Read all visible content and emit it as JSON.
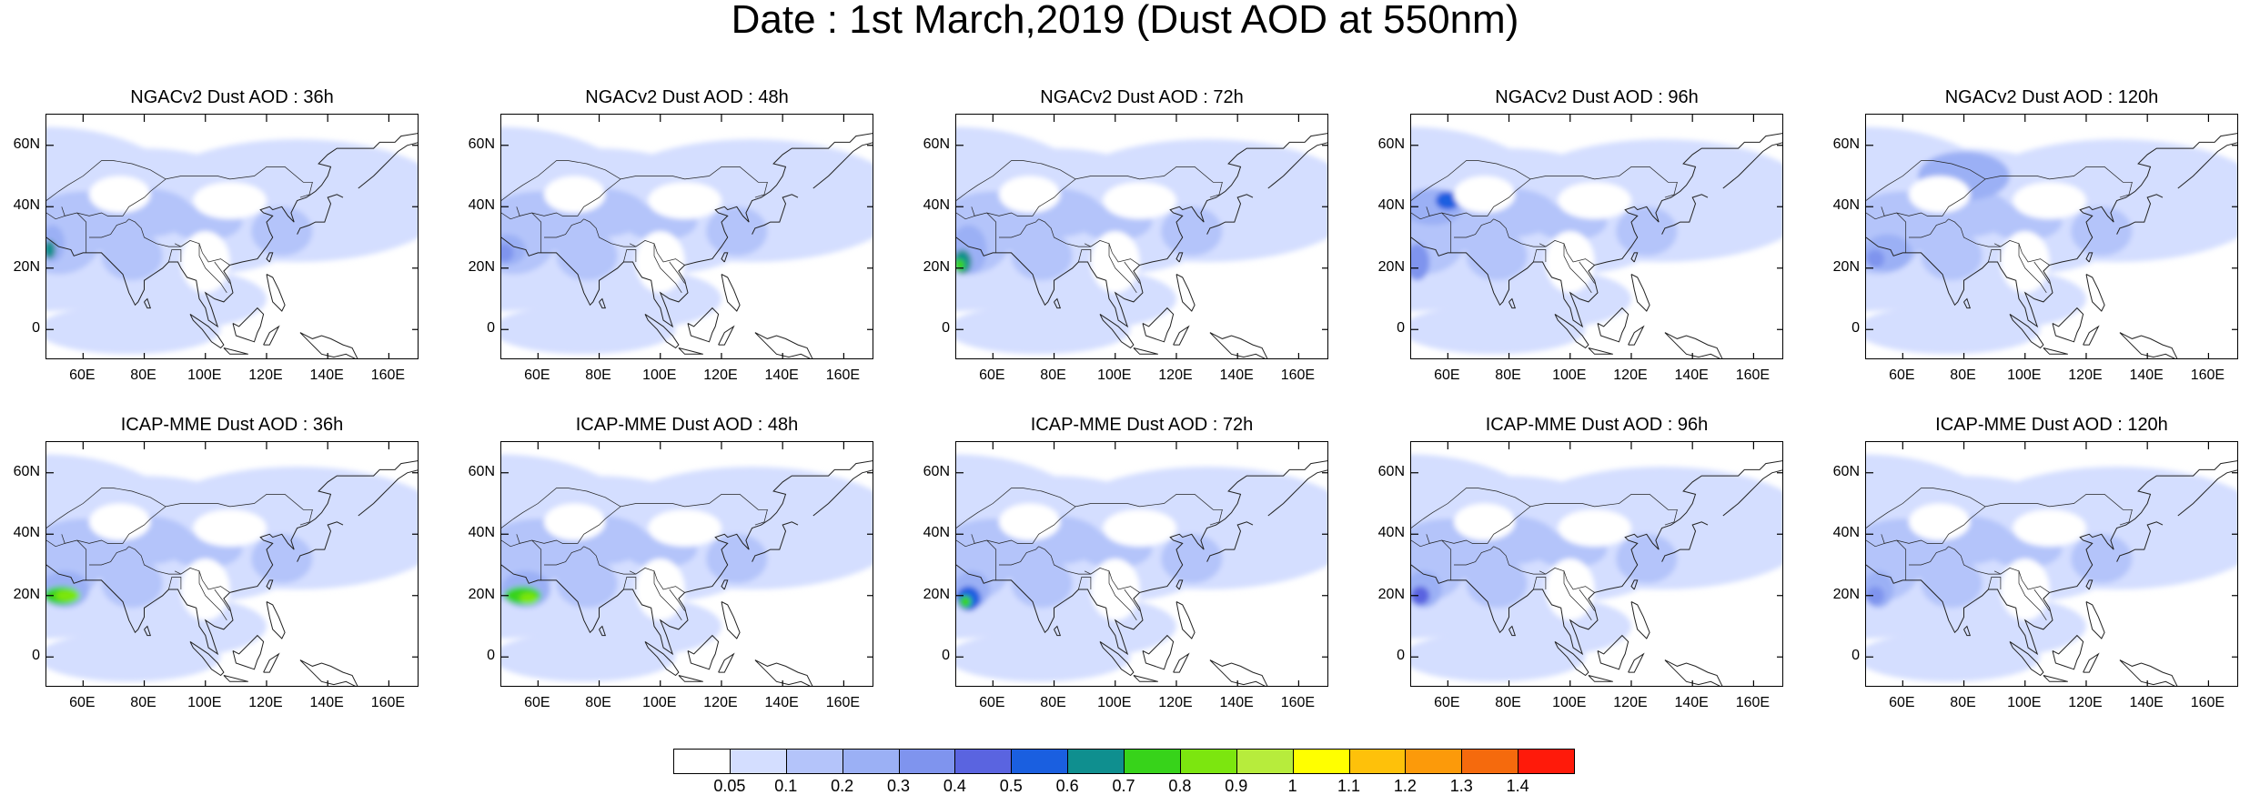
{
  "title": "Date : 1st March,2019 (Dust AOD at 550nm)",
  "rows": [
    {
      "model": "NGACv2",
      "panels": [
        {
          "title": "NGACv2 Dust AOD : 36h",
          "lead": "36h"
        },
        {
          "title": "NGACv2 Dust AOD : 48h",
          "lead": "48h"
        },
        {
          "title": "NGACv2 Dust AOD : 72h",
          "lead": "72h"
        },
        {
          "title": "NGACv2 Dust AOD : 96h",
          "lead": "96h"
        },
        {
          "title": "NGACv2 Dust AOD : 120h",
          "lead": "120h"
        }
      ]
    },
    {
      "model": "ICAP-MME",
      "panels": [
        {
          "title": "ICAP-MME Dust AOD : 36h",
          "lead": "36h"
        },
        {
          "title": "ICAP-MME Dust AOD : 48h",
          "lead": "48h"
        },
        {
          "title": "ICAP-MME Dust AOD : 72h",
          "lead": "72h"
        },
        {
          "title": "ICAP-MME Dust AOD : 96h",
          "lead": "96h"
        },
        {
          "title": "ICAP-MME Dust AOD : 120h",
          "lead": "120h"
        }
      ]
    }
  ],
  "axes": {
    "lat_ticks": [
      "60N",
      "40N",
      "20N",
      "0"
    ],
    "lon_ticks": [
      "60E",
      "80E",
      "100E",
      "120E",
      "140E",
      "160E"
    ],
    "lat_values": [
      60,
      40,
      20,
      0
    ],
    "lon_values": [
      60,
      80,
      100,
      120,
      140,
      160
    ],
    "lon_range": [
      48,
      170
    ],
    "lat_range": [
      -10,
      70
    ]
  },
  "colorbar": {
    "labels": [
      "0.05",
      "0.1",
      "0.2",
      "0.3",
      "0.4",
      "0.5",
      "0.6",
      "0.7",
      "0.8",
      "0.9",
      "1",
      "1.1",
      "1.2",
      "1.3",
      "1.4"
    ],
    "colors": [
      "#ffffff",
      "#d4deff",
      "#b4c4fa",
      "#9bb0f5",
      "#7f94ee",
      "#5a64e0",
      "#1a5fe0",
      "#0f8f8f",
      "#37d31a",
      "#7ce60f",
      "#b7ec3c",
      "#ffff00",
      "#fec10a",
      "#fc9a0a",
      "#f56a0d",
      "#ff1a0a"
    ]
  }
}
